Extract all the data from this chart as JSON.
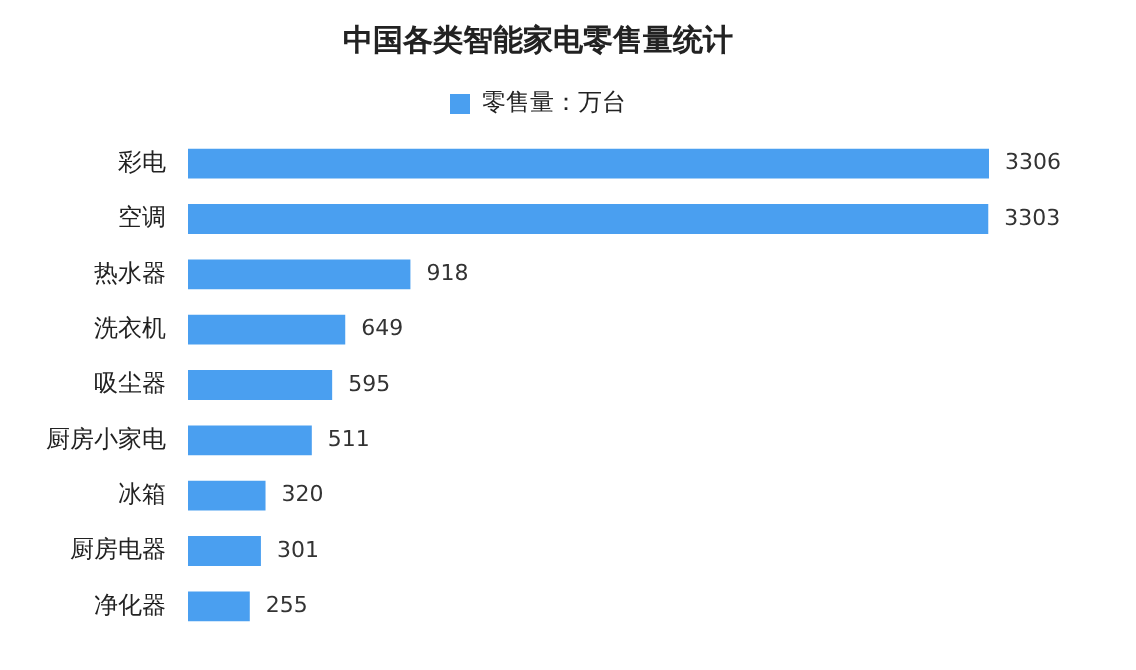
{
  "chart_data": {
    "type": "bar",
    "orientation": "horizontal",
    "title": "中国各类智能家电零售量统计",
    "categories": [
      "彩电",
      "空调",
      "热水器",
      "洗衣机",
      "吸尘器",
      "厨房小家电",
      "冰箱",
      "厨房电器",
      "净化器"
    ],
    "series": [
      {
        "name": "零售量：万台",
        "color": "#4a9ff0",
        "values": [
          3306,
          3303,
          918,
          649,
          595,
          511,
          320,
          301,
          255
        ]
      }
    ],
    "data_labels": true,
    "legend": "top",
    "grid": false,
    "tick_labels": "y"
  }
}
